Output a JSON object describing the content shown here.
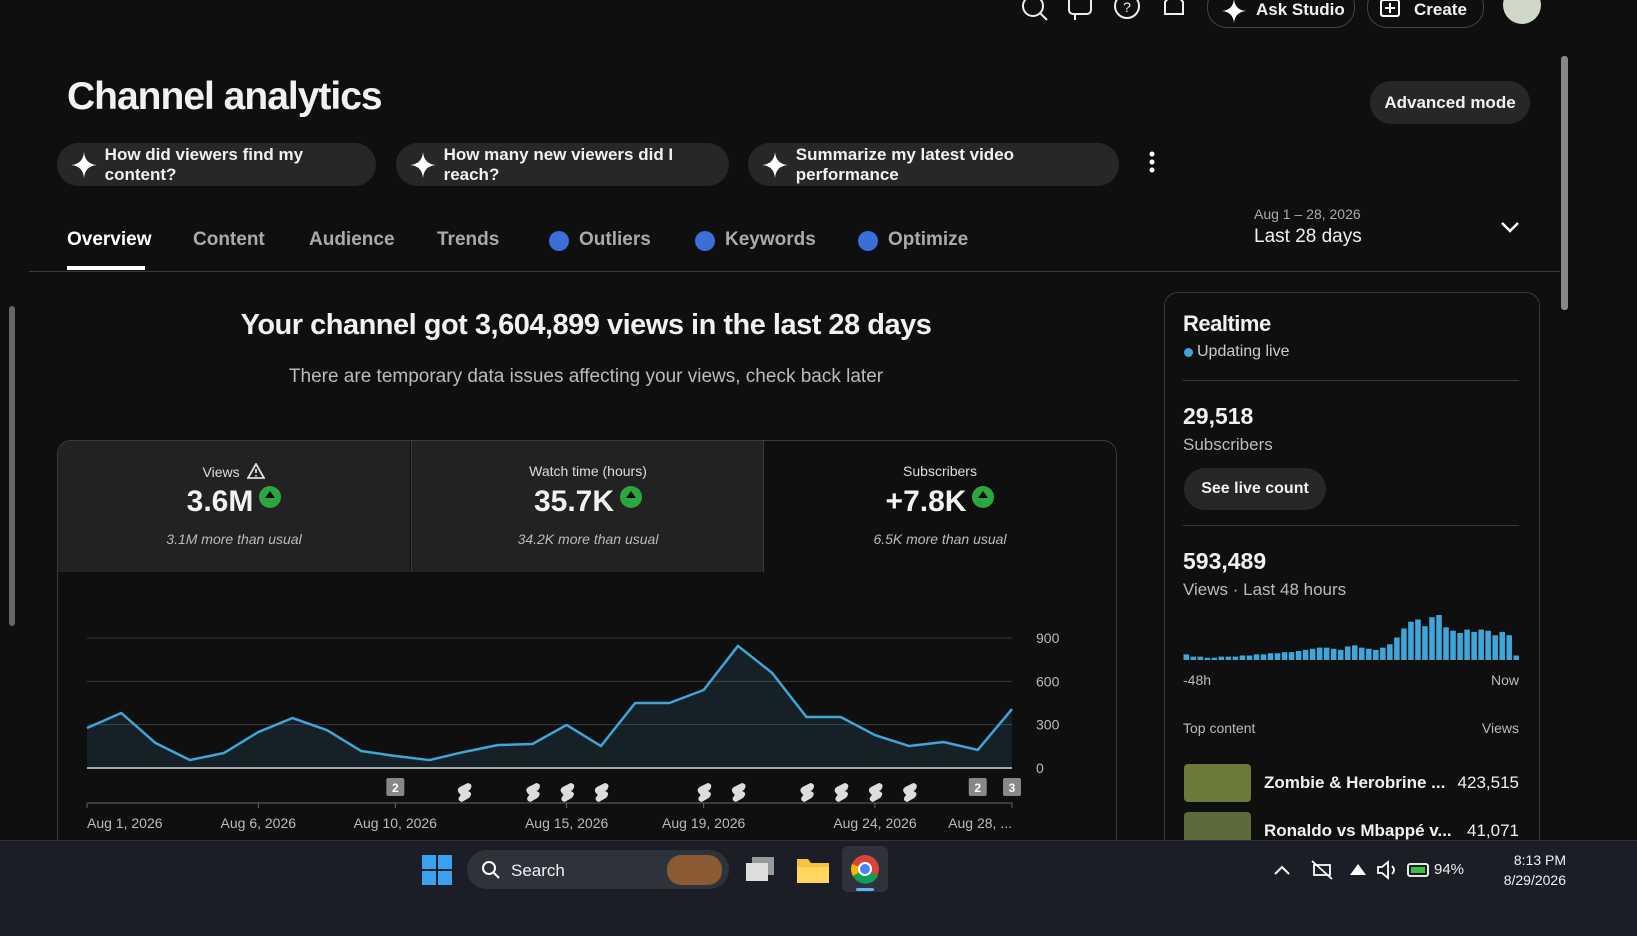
{
  "topbar": {
    "ask_studio": "Ask Studio",
    "create": "Create"
  },
  "header": {
    "title": "Channel analytics",
    "advanced_mode": "Advanced mode"
  },
  "prompts": [
    "How did viewers find my content?",
    "How many new viewers did I reach?",
    "Summarize my latest video performance"
  ],
  "tabs": [
    "Overview",
    "Content",
    "Audience",
    "Trends",
    "Outliers",
    "Keywords",
    "Optimize"
  ],
  "date_range": {
    "dates": "Aug 1 – 28, 2026",
    "label": "Last 28 days"
  },
  "summary": {
    "headline": "Your channel got 3,604,899 views in the last 28 days",
    "notice": "There are temporary data issues affecting your views, check back later"
  },
  "metrics": [
    {
      "label": "Views",
      "value": "3.6M",
      "note": "3.1M more than usual"
    },
    {
      "label": "Watch time (hours)",
      "value": "35.7K",
      "note": "34.2K more than usual"
    },
    {
      "label": "Subscribers",
      "value": "+7.8K",
      "note": "6.5K more than usual"
    }
  ],
  "chart_data": {
    "type": "line",
    "categories": [
      "Aug 1, 2026",
      null,
      null,
      null,
      null,
      "Aug 6, 2026",
      null,
      null,
      null,
      "Aug 10, 2026",
      null,
      null,
      null,
      null,
      "Aug 15, 2026",
      null,
      null,
      null,
      "Aug 19, 2026",
      null,
      null,
      null,
      null,
      "Aug 24, 2026",
      null,
      null,
      null,
      "Aug 28, ..."
    ],
    "values": [
      277,
      381,
      173,
      55,
      104,
      249,
      346,
      263,
      118,
      83,
      55,
      111,
      159,
      166,
      298,
      152,
      450,
      450,
      540,
      845,
      658,
      353,
      353,
      228,
      152,
      180,
      125,
      408
    ],
    "color": "#3ea6d8",
    "ylim": [
      0,
      900
    ],
    "yticks": [
      0,
      300,
      600,
      900
    ],
    "grid": true,
    "annotations": [
      {
        "index": 9,
        "text": "2"
      },
      {
        "index": 26,
        "text": "2"
      },
      {
        "index": 27,
        "text": "3"
      }
    ]
  },
  "realtime": {
    "title": "Realtime",
    "status": "Updating live",
    "subscribers": "29,518",
    "subscribers_label": "Subscribers",
    "button": "See live count",
    "views": "593,489",
    "views_label": "Views · Last 48 hours",
    "bars": [
      5,
      3,
      3,
      2,
      2,
      3,
      3,
      3,
      4,
      4,
      5,
      5,
      6,
      6,
      7,
      7,
      8,
      9,
      10,
      11,
      11,
      10,
      9,
      12,
      13,
      11,
      10,
      9,
      11,
      14,
      20,
      28,
      34,
      36,
      30,
      38,
      40,
      29,
      26,
      24,
      27,
      25,
      27,
      26,
      22,
      25,
      22,
      4
    ],
    "bar_color": "#3ea6d8",
    "start_label": "-48h",
    "end_label": "Now",
    "top_content": "Top content",
    "top_views": "Views",
    "items": [
      {
        "title": "Zombie & Herobrine ...",
        "views": "423,515"
      },
      {
        "title": "Ronaldo vs Mbappé v...",
        "views": "41,071"
      }
    ]
  },
  "taskbar": {
    "search": "Search",
    "battery": "94%",
    "time": "8:13 PM",
    "date": "8/29/2026"
  }
}
